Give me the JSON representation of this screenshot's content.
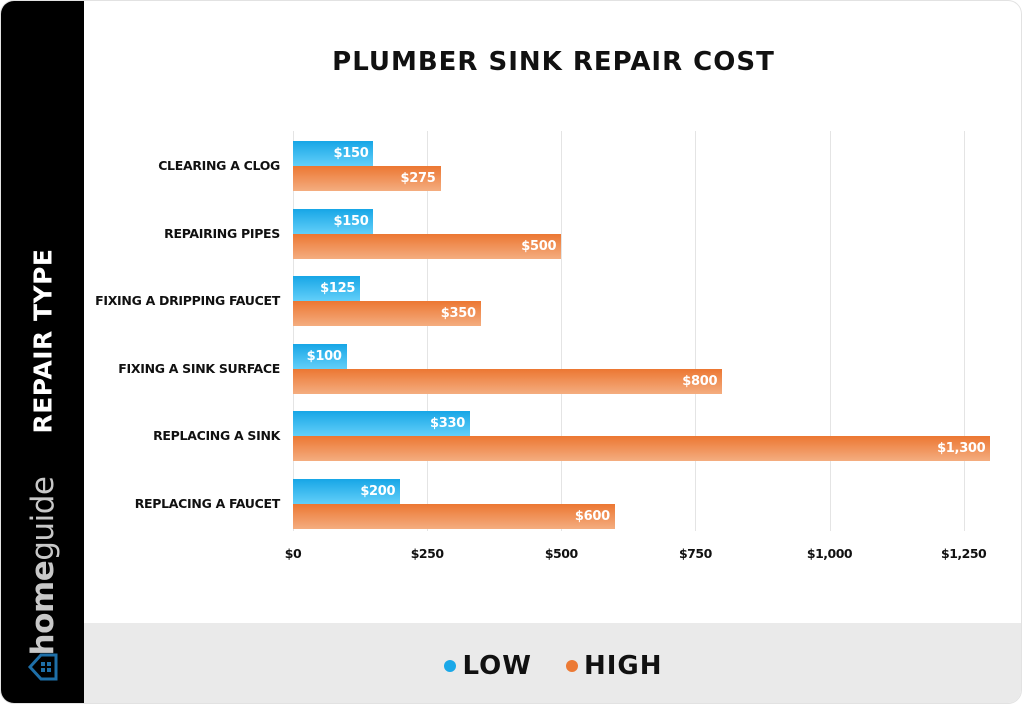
{
  "title": "PLUMBER SINK REPAIR COST",
  "side_label": "REPAIR TYPE",
  "brand": {
    "bold": "home",
    "light": "guide"
  },
  "legend": [
    {
      "label": "LOW",
      "color": "#1aa8e8"
    },
    {
      "label": "HIGH",
      "color": "#ec7a35"
    }
  ],
  "x_ticks": [
    "$0",
    "$250",
    "$500",
    "$750",
    "$1,000",
    "$1,250"
  ],
  "rows": [
    {
      "category": "CLEARING A CLOG",
      "low": "$150",
      "high": "$275"
    },
    {
      "category": "REPAIRING PIPES",
      "low": "$150",
      "high": "$500"
    },
    {
      "category": "FIXING A DRIPPING FAUCET",
      "low": "$125",
      "high": "$350"
    },
    {
      "category": "FIXING A SINK SURFACE",
      "low": "$100",
      "high": "$800"
    },
    {
      "category": "REPLACING A SINK",
      "low": "$330",
      "high": "$1,300"
    },
    {
      "category": "REPLACING A FAUCET",
      "low": "$200",
      "high": "$600"
    }
  ],
  "chart_data": {
    "type": "bar",
    "orientation": "horizontal",
    "title": "PLUMBER SINK REPAIR COST",
    "xlabel": "",
    "ylabel": "REPAIR TYPE",
    "categories": [
      "CLEARING A CLOG",
      "REPAIRING PIPES",
      "FIXING A DRIPPING FAUCET",
      "FIXING A SINK SURFACE",
      "REPLACING A SINK",
      "REPLACING A FAUCET"
    ],
    "series": [
      {
        "name": "LOW",
        "color": "#1aa8e8",
        "values": [
          150,
          150,
          125,
          100,
          330,
          200
        ]
      },
      {
        "name": "HIGH",
        "color": "#ec7a35",
        "values": [
          275,
          500,
          350,
          800,
          1300,
          600
        ]
      }
    ],
    "xlim": [
      0,
      1300
    ],
    "x_ticks": [
      0,
      250,
      500,
      750,
      1000,
      1250
    ],
    "x_tick_labels": [
      "$0",
      "$250",
      "$500",
      "$750",
      "$1,000",
      "$1,250"
    ],
    "grid": "vertical",
    "legend_position": "bottom",
    "data_labels": true
  }
}
